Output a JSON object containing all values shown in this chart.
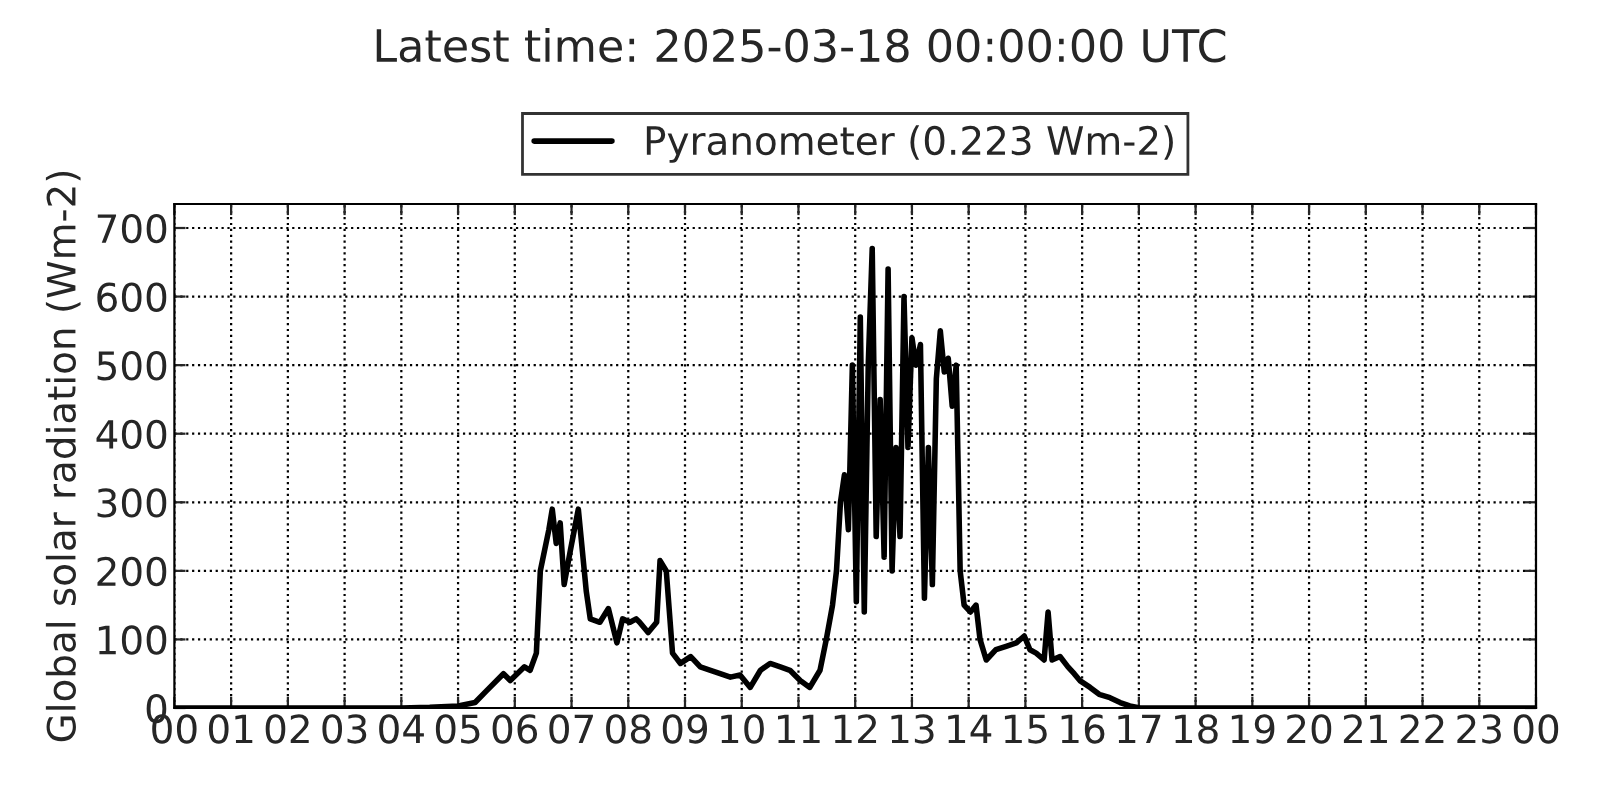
{
  "chart_data": {
    "type": "line",
    "title": "Latest time: 2025-03-18 00:00:00 UTC",
    "ylabel": "Global solar radiation (Wm-2)",
    "xlim": [
      0,
      24
    ],
    "ylim": [
      0,
      735
    ],
    "xticks": [
      {
        "value": 0,
        "label": "00"
      },
      {
        "value": 1,
        "label": "01"
      },
      {
        "value": 2,
        "label": "02"
      },
      {
        "value": 3,
        "label": "03"
      },
      {
        "value": 4,
        "label": "04"
      },
      {
        "value": 5,
        "label": "05"
      },
      {
        "value": 6,
        "label": "06"
      },
      {
        "value": 7,
        "label": "07"
      },
      {
        "value": 8,
        "label": "08"
      },
      {
        "value": 9,
        "label": "09"
      },
      {
        "value": 10,
        "label": "10"
      },
      {
        "value": 11,
        "label": "11"
      },
      {
        "value": 12,
        "label": "12"
      },
      {
        "value": 13,
        "label": "13"
      },
      {
        "value": 14,
        "label": "14"
      },
      {
        "value": 15,
        "label": "15"
      },
      {
        "value": 16,
        "label": "16"
      },
      {
        "value": 17,
        "label": "17"
      },
      {
        "value": 18,
        "label": "18"
      },
      {
        "value": 19,
        "label": "19"
      },
      {
        "value": 20,
        "label": "20"
      },
      {
        "value": 21,
        "label": "21"
      },
      {
        "value": 22,
        "label": "22"
      },
      {
        "value": 23,
        "label": "23"
      },
      {
        "value": 24,
        "label": "00"
      }
    ],
    "yticks": [
      0,
      100,
      200,
      300,
      400,
      500,
      600,
      700
    ],
    "grid": true,
    "legend": "top",
    "line_style": "solid",
    "marker": "none",
    "series": [
      {
        "name": "Pyranometer (0.223 Wm-2)",
        "color": "#000000",
        "x": [
          0,
          2,
          4,
          4.5,
          5.0,
          5.3,
          5.5,
          5.8,
          5.92,
          6.17,
          6.27,
          6.38,
          6.45,
          6.6,
          6.66,
          6.73,
          6.8,
          6.87,
          6.98,
          7.12,
          7.19,
          7.26,
          7.33,
          7.5,
          7.65,
          7.8,
          7.9,
          8.03,
          8.14,
          8.2,
          8.35,
          8.5,
          8.56,
          8.67,
          8.78,
          8.92,
          9.1,
          9.27,
          9.45,
          9.62,
          9.8,
          9.97,
          10.15,
          10.33,
          10.5,
          10.68,
          10.85,
          11.03,
          11.2,
          11.38,
          11.49,
          11.6,
          11.67,
          11.74,
          11.81,
          11.88,
          11.95,
          12.02,
          12.09,
          12.16,
          12.23,
          12.3,
          12.37,
          12.44,
          12.51,
          12.58,
          12.65,
          12.72,
          12.79,
          12.86,
          12.93,
          13.0,
          13.07,
          13.15,
          13.22,
          13.29,
          13.36,
          13.43,
          13.5,
          13.57,
          13.64,
          13.71,
          13.78,
          13.85,
          13.92,
          14.03,
          14.13,
          14.2,
          14.31,
          14.48,
          14.66,
          14.84,
          14.98,
          15.08,
          15.19,
          15.33,
          15.4,
          15.47,
          15.61,
          15.75,
          15.86,
          15.96,
          16.14,
          16.3,
          16.49,
          16.67,
          16.84,
          17.02,
          18,
          20,
          22,
          24
        ],
        "values": [
          0,
          0,
          0,
          1,
          3,
          8,
          25,
          50,
          40,
          60,
          55,
          80,
          200,
          260,
          290,
          240,
          270,
          180,
          230,
          290,
          230,
          170,
          130,
          125,
          145,
          95,
          130,
          125,
          130,
          125,
          110,
          125,
          215,
          200,
          80,
          65,
          75,
          60,
          55,
          50,
          45,
          48,
          30,
          55,
          65,
          60,
          55,
          40,
          30,
          55,
          100,
          150,
          200,
          300,
          340,
          260,
          500,
          155,
          570,
          140,
          500,
          670,
          250,
          450,
          220,
          640,
          200,
          380,
          250,
          600,
          380,
          540,
          500,
          530,
          160,
          380,
          180,
          480,
          550,
          490,
          510,
          440,
          500,
          200,
          150,
          140,
          150,
          100,
          70,
          85,
          90,
          95,
          105,
          85,
          80,
          70,
          140,
          70,
          75,
          60,
          50,
          40,
          30,
          20,
          15,
          8,
          3,
          0,
          0,
          0,
          0,
          0
        ]
      }
    ]
  }
}
